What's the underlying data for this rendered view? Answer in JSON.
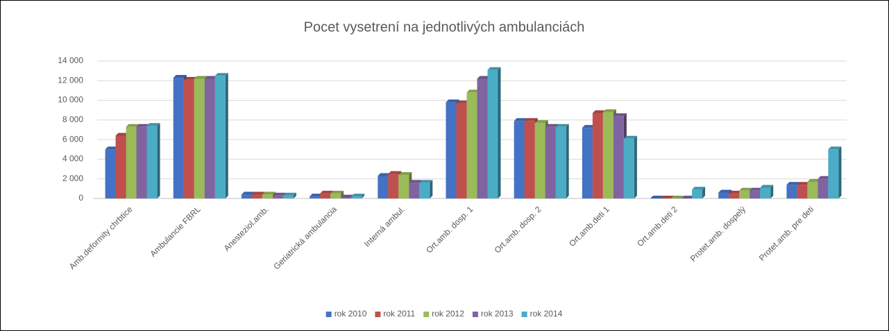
{
  "chart_data": {
    "type": "bar",
    "title": "Pocet vysetrení na jednotlivých ambulanciách",
    "categories": [
      "Amb.deformity chrbtice",
      "Ambulancie FBRL",
      "Anesteziol.amb.",
      "Geriatrická ambulancia",
      "Interná ambul.",
      "Ort.amb. dosp. 1",
      "Ort.amb. dosp. 2",
      "Ort.amb.deti 1",
      "Ort.amb.deti 2",
      "Protet.amb. dospelý",
      "Protet.amb. pre deti"
    ],
    "series": [
      {
        "name": "rok 2010",
        "color": "#4472c4",
        "values": [
          5000,
          12300,
          400,
          200,
          2300,
          9800,
          7900,
          7200,
          0,
          600,
          1400
        ]
      },
      {
        "name": "rok 2011",
        "color": "#c0504d",
        "values": [
          6400,
          12100,
          400,
          500,
          2500,
          9700,
          7900,
          8700,
          0,
          500,
          1400
        ]
      },
      {
        "name": "rok 2012",
        "color": "#9bbb59",
        "values": [
          7300,
          12200,
          400,
          500,
          2400,
          10800,
          7700,
          8800,
          0,
          800,
          1700
        ]
      },
      {
        "name": "rok 2013",
        "color": "#8064a2",
        "values": [
          7300,
          12200,
          300,
          100,
          1600,
          12200,
          7300,
          8400,
          0,
          800,
          2000
        ]
      },
      {
        "name": "rok 2014",
        "color": "#4bacc6",
        "values": [
          7400,
          12500,
          300,
          200,
          1600,
          13100,
          7300,
          6100,
          900,
          1100,
          5000
        ]
      }
    ],
    "ylim": [
      0,
      14000
    ],
    "yticks": [
      0,
      {
        "value": 2000,
        "label": "2 000"
      },
      {
        "value": 4000,
        "label": "4 000"
      },
      {
        "value": 6000,
        "label": "6 000"
      },
      {
        "value": 8000,
        "label": "8 000"
      },
      {
        "value": 10000,
        "label": "10 000"
      },
      {
        "value": 12000,
        "label": "12 000"
      },
      {
        "value": 14000,
        "label": "14 000"
      }
    ],
    "grid": true,
    "legend": "bottom"
  }
}
